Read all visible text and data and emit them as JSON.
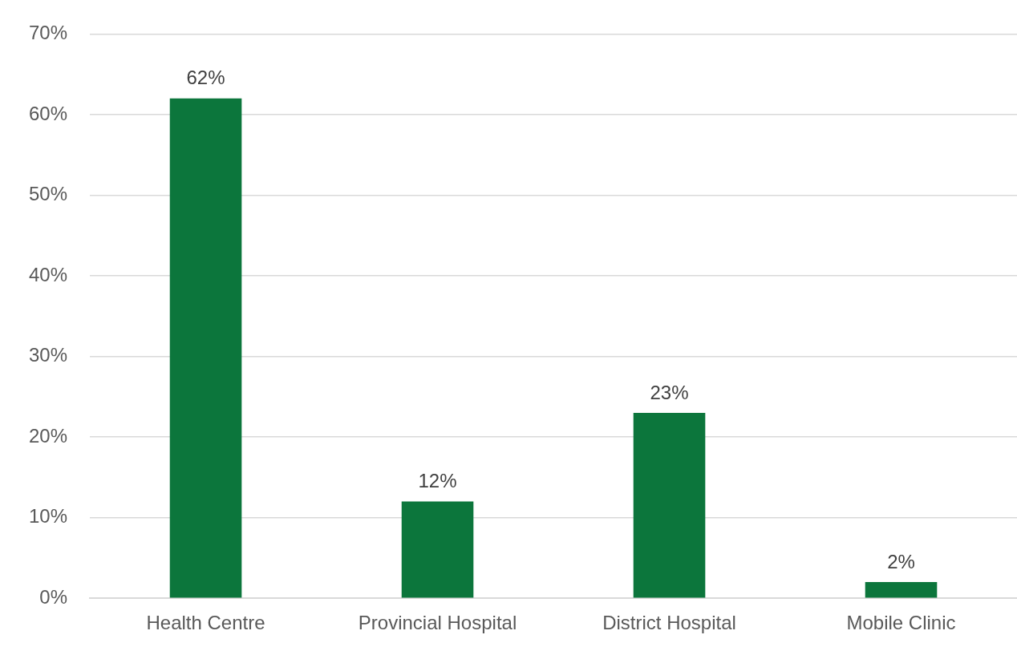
{
  "chart_data": {
    "type": "bar",
    "categories": [
      "Health Centre",
      "Provincial Hospital",
      "District Hospital",
      "Mobile Clinic"
    ],
    "values": [
      62,
      12,
      23,
      2
    ],
    "value_labels": [
      "62%",
      "12%",
      "23%",
      "2%"
    ],
    "color": "#0c763c",
    "ylim": [
      0,
      70
    ],
    "yticks": [
      {
        "value": 0,
        "label": "0%"
      },
      {
        "value": 10,
        "label": "10%"
      },
      {
        "value": 20,
        "label": "20%"
      },
      {
        "value": 30,
        "label": "30%"
      },
      {
        "value": 40,
        "label": "40%"
      },
      {
        "value": 50,
        "label": "50%"
      },
      {
        "value": 60,
        "label": "60%"
      },
      {
        "value": 70,
        "label": "70%"
      }
    ],
    "grid": "y",
    "legend": false
  }
}
